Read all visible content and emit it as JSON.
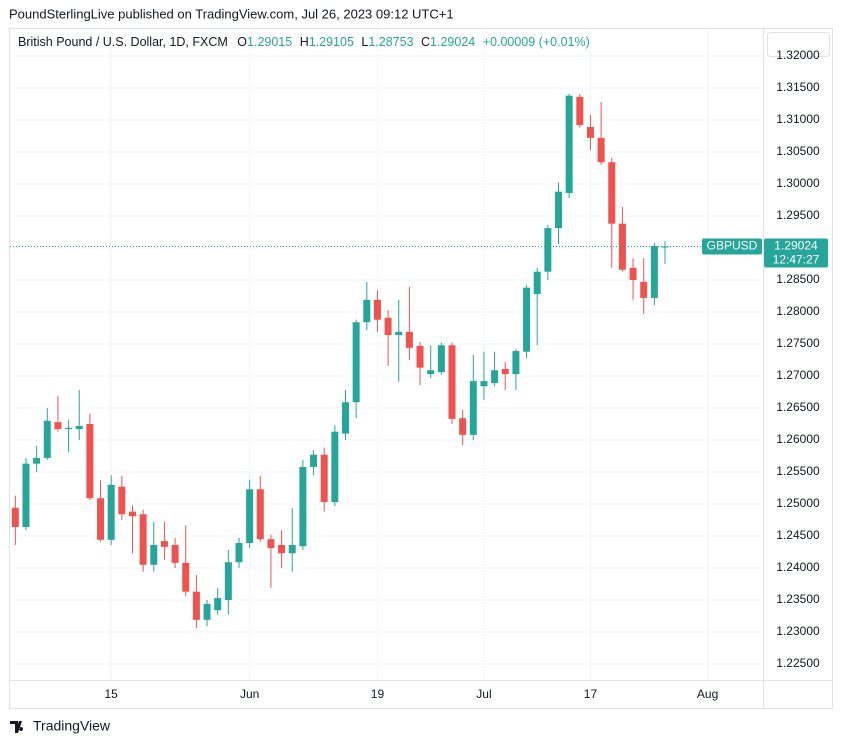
{
  "publisher": "PoundSterlingLive published on TradingView.com, Jul 26, 2023 09:12 UTC+1",
  "footer": "TradingView",
  "chart_data": {
    "type": "candlestick",
    "title": "British Pound / U.S. Dollar, 1D, FXCM",
    "legend_labels": {
      "open": "O",
      "high": "H",
      "low": "L",
      "close": "C"
    },
    "change": "+0.00009 (+0.01%)",
    "symbol": "GBPUSD",
    "countdown": "12:47:27",
    "up_color": "#26a69a",
    "down_color": "#ef5350",
    "open": [
      1.2494,
      1.2464,
      1.2563,
      1.2572,
      1.2628,
      1.2617,
      1.2617,
      1.2625,
      1.2509,
      1.2444,
      1.2527,
      1.2488,
      1.2484,
      1.2405,
      1.2442,
      1.2436,
      1.2408,
      1.2363,
      1.2319,
      1.2334,
      1.235,
      1.2409,
      1.2439,
      1.2523,
      1.2445,
      1.2436,
      1.2423,
      1.2434,
      1.2558,
      1.2577,
      1.2503,
      1.261,
      1.2659,
      1.2784,
      1.2819,
      1.2791,
      1.2764,
      1.2769,
      1.2747,
      1.2703,
      1.2706,
      1.2748,
      1.2634,
      1.2608,
      1.2684,
      1.2689,
      1.2711,
      1.2703,
      1.2738,
      1.2828,
      1.2863,
      1.2931,
      1.2986,
      1.3136,
      1.3089,
      1.3072,
      1.3034,
      1.2938,
      1.2869,
      1.2847,
      1.2822,
      1.29015
    ],
    "high": [
      1.2513,
      1.2572,
      1.2591,
      1.265,
      1.2669,
      1.2631,
      1.2678,
      1.2641,
      1.2537,
      1.2545,
      1.2544,
      1.2498,
      1.2491,
      1.2472,
      1.2472,
      1.2447,
      1.2467,
      1.2389,
      1.235,
      1.2369,
      1.2428,
      1.2447,
      1.2538,
      1.2544,
      1.2452,
      1.2459,
      1.2494,
      1.2569,
      1.2584,
      1.2588,
      1.2623,
      1.2678,
      1.2788,
      1.2847,
      1.2834,
      1.2803,
      1.2819,
      1.2839,
      1.2753,
      1.2748,
      1.2752,
      1.2752,
      1.2647,
      1.2733,
      1.2738,
      1.2738,
      1.2722,
      1.2742,
      1.2842,
      1.2869,
      1.2936,
      1.3002,
      1.3141,
      1.3141,
      1.3108,
      1.3128,
      1.3041,
      1.2964,
      1.2884,
      1.2884,
      1.2908,
      1.29105
    ],
    "low": [
      1.2436,
      1.2459,
      1.255,
      1.2569,
      1.2613,
      1.2581,
      1.26,
      1.2506,
      1.2441,
      1.2436,
      1.2475,
      1.2423,
      1.2394,
      1.2394,
      1.2413,
      1.24,
      1.2356,
      1.2306,
      1.2309,
      1.2327,
      1.2327,
      1.24,
      1.2431,
      1.2441,
      1.2369,
      1.24,
      1.2394,
      1.2428,
      1.2545,
      1.2488,
      1.2497,
      1.26,
      1.2634,
      1.2772,
      1.2769,
      1.2716,
      1.2691,
      1.2725,
      1.2686,
      1.2697,
      1.2702,
      1.2625,
      1.2592,
      1.26,
      1.2663,
      1.2684,
      1.2678,
      1.2678,
      1.2728,
      1.2748,
      1.285,
      1.2906,
      1.2978,
      1.3088,
      1.3053,
      1.303,
      1.2869,
      1.2863,
      1.2819,
      1.2797,
      1.2811,
      1.28753
    ],
    "close": [
      1.2464,
      1.2563,
      1.2572,
      1.263,
      1.2617,
      1.2619,
      1.2622,
      1.2509,
      1.2444,
      1.253,
      1.2484,
      1.2481,
      1.2405,
      1.2436,
      1.2433,
      1.2408,
      1.2363,
      1.2319,
      1.2344,
      1.2353,
      1.2409,
      1.2439,
      1.2523,
      1.2445,
      1.2431,
      1.2423,
      1.2436,
      1.2558,
      1.2577,
      1.2503,
      1.2613,
      1.2659,
      1.2784,
      1.2819,
      1.2788,
      1.2764,
      1.2769,
      1.2744,
      1.2713,
      1.2709,
      1.2748,
      1.2633,
      1.2608,
      1.2692,
      1.2692,
      1.2709,
      1.2703,
      1.2739,
      1.2838,
      1.2863,
      1.2931,
      1.2988,
      1.3138,
      1.3092,
      1.3072,
      1.3034,
      1.2938,
      1.2866,
      1.285,
      1.2822,
      1.2903,
      1.29024
    ],
    "xlim": [
      -0.5,
      70.2
    ],
    "xticks": [
      {
        "value": 9,
        "label": "15"
      },
      {
        "value": 22,
        "label": "Jun"
      },
      {
        "value": 34,
        "label": "19"
      },
      {
        "value": 44,
        "label": "Jul"
      },
      {
        "value": 54,
        "label": "17"
      },
      {
        "value": 65,
        "label": "Aug"
      }
    ],
    "ylim": [
      1.2225,
      1.32406
    ],
    "yticks": [
      {
        "value": 1.225,
        "label": "1.22500"
      },
      {
        "value": 1.23,
        "label": "1.23000"
      },
      {
        "value": 1.235,
        "label": "1.23500"
      },
      {
        "value": 1.24,
        "label": "1.24000"
      },
      {
        "value": 1.245,
        "label": "1.24500"
      },
      {
        "value": 1.25,
        "label": "1.25000"
      },
      {
        "value": 1.255,
        "label": "1.25500"
      },
      {
        "value": 1.26,
        "label": "1.26000"
      },
      {
        "value": 1.265,
        "label": "1.26500"
      },
      {
        "value": 1.27,
        "label": "1.27000"
      },
      {
        "value": 1.275,
        "label": "1.27500"
      },
      {
        "value": 1.28,
        "label": "1.28000"
      },
      {
        "value": 1.285,
        "label": "1.28500"
      },
      {
        "value": 1.29,
        "label": "1.29000"
      },
      {
        "value": 1.295,
        "label": "1.29500"
      },
      {
        "value": 1.3,
        "label": "1.30000"
      },
      {
        "value": 1.305,
        "label": "1.30500"
      },
      {
        "value": 1.31,
        "label": "1.31000"
      },
      {
        "value": 1.315,
        "label": "1.31500"
      },
      {
        "value": 1.32,
        "label": "1.32000"
      }
    ],
    "grid": true
  }
}
